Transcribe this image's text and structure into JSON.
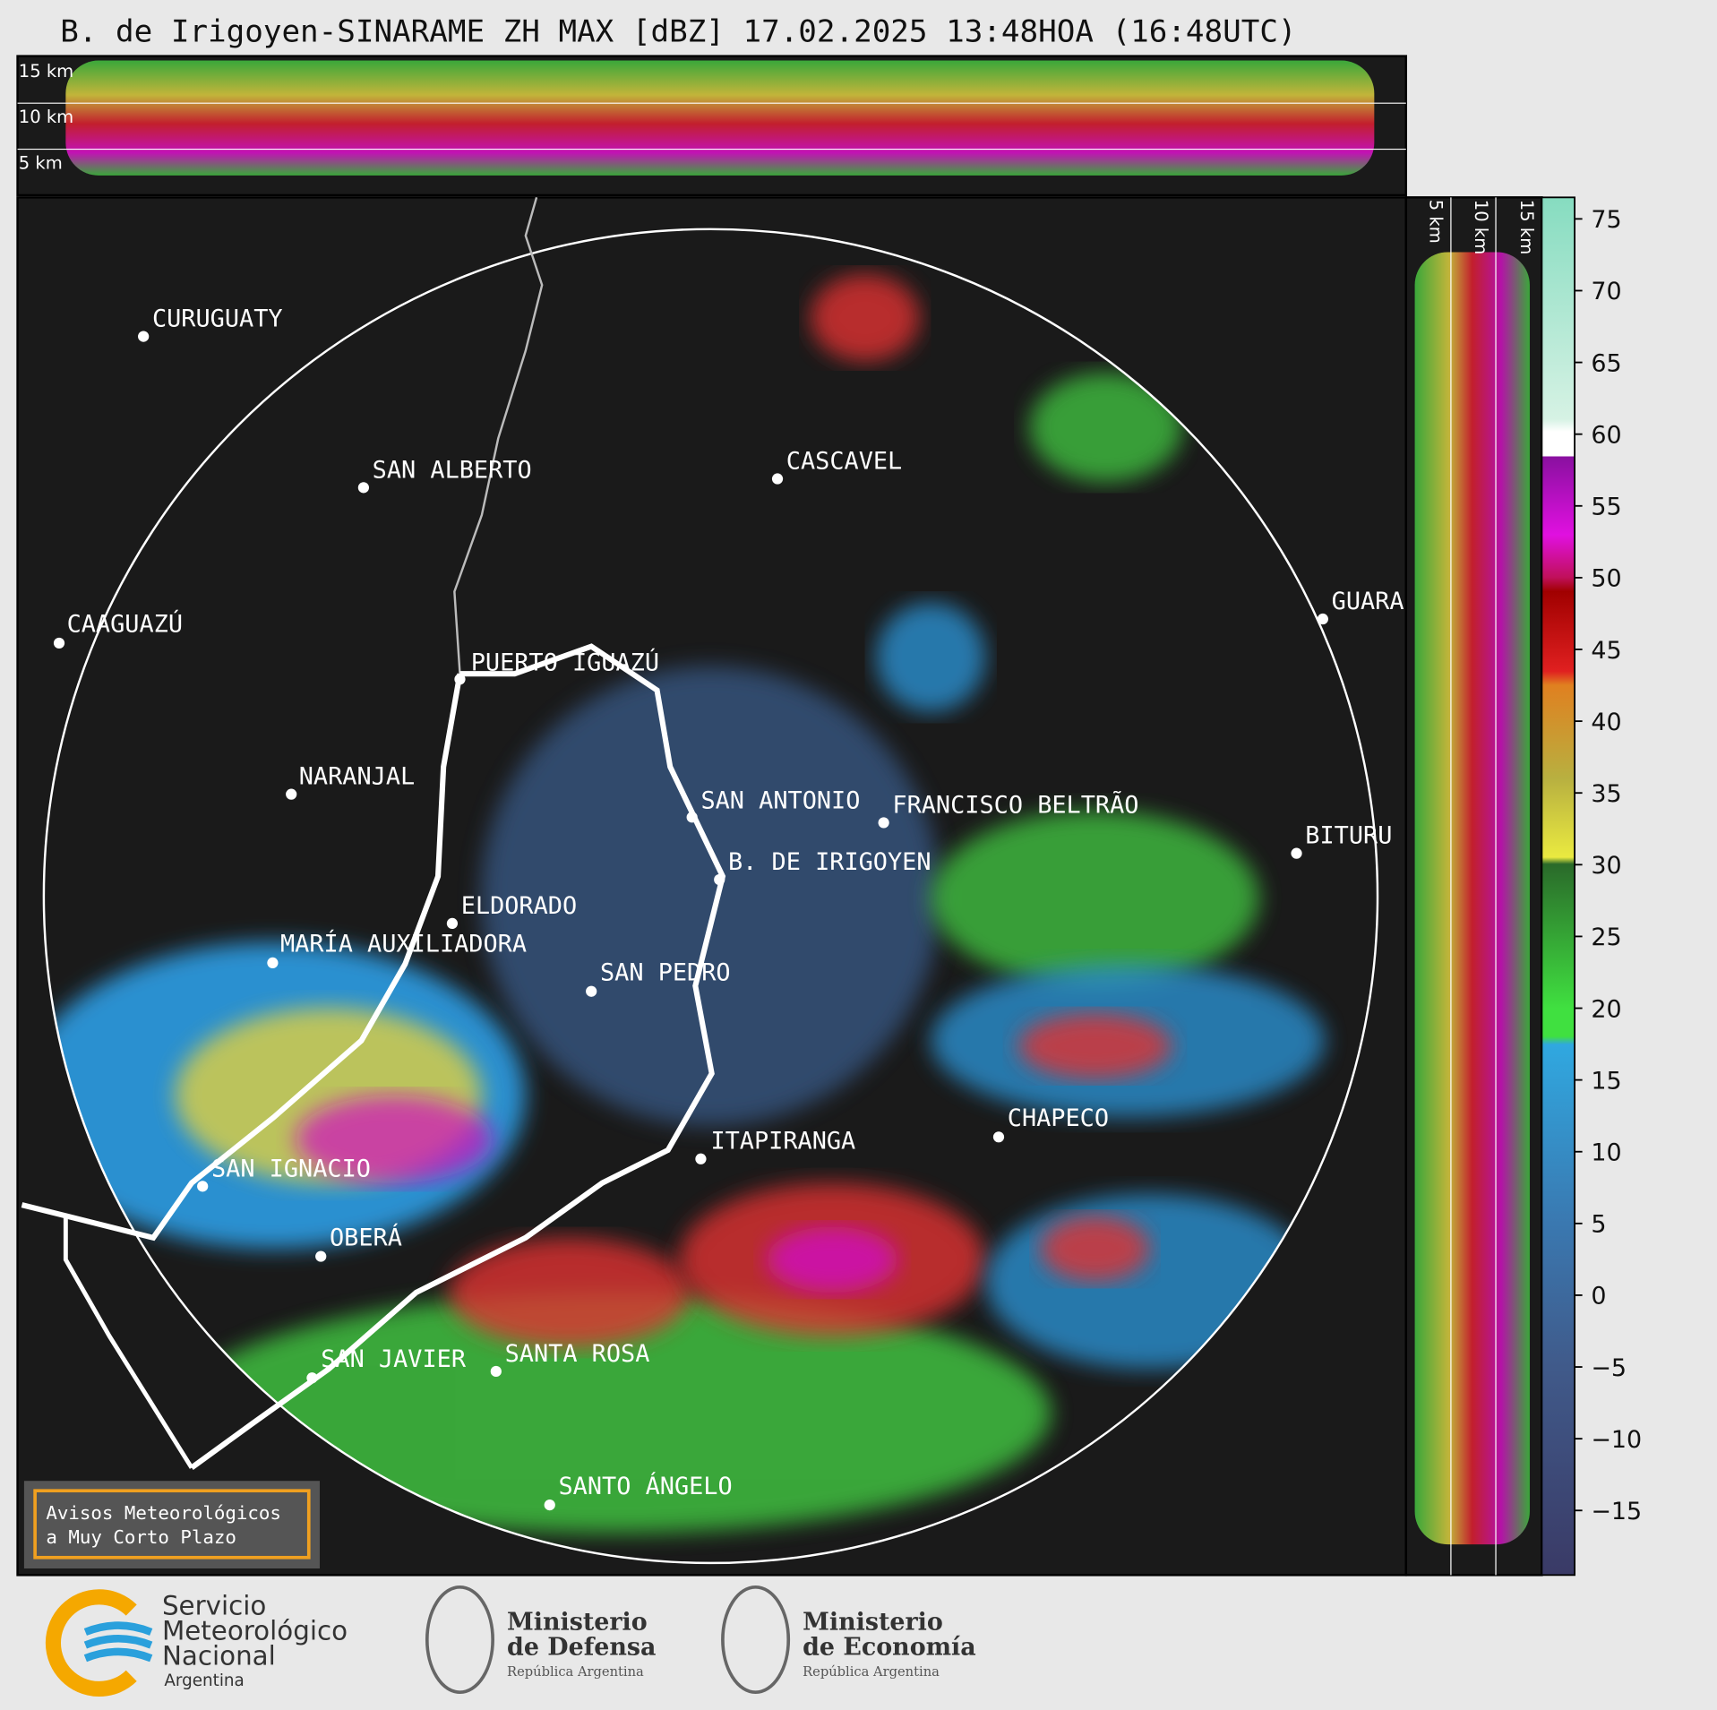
{
  "header": {
    "title": "B. de Irigoyen-SINARAME ZH MAX [dBZ] 17.02.2025 13:48HOA (16:48UTC)"
  },
  "top_panel": {
    "altitude_labels": [
      "15 km",
      "10 km",
      "5 km"
    ]
  },
  "side_panel": {
    "altitude_labels": [
      "5 km",
      "10 km",
      "15 km"
    ]
  },
  "map": {
    "places": [
      "CURUGUATY",
      "SAN ALBERTO",
      "CAAGUAZÚ",
      "CASCAVEL",
      "GUARA",
      "PUERTO IGUAZÚ",
      "NARANJAL",
      "SAN ANTONIO",
      "FRANCISCO BELTRÃO",
      "BITURU",
      "B. DE IRIGOYEN",
      "ELDORADO",
      "MARÍA AUXILIADORA",
      "SAN PEDRO",
      "CHAPECO",
      "ITAPIRANGA",
      "SAN IGNACIO",
      "OBERÁ",
      "SAN JAVIER",
      "SANTA ROSA",
      "SANTO ÁNGELO"
    ]
  },
  "colorbar": {
    "lim": [
      -19.5,
      76.5
    ],
    "ticks": [
      75,
      70,
      65,
      60,
      55,
      50,
      45,
      40,
      35,
      30,
      25,
      20,
      15,
      10,
      5,
      0,
      {
        "value": -5,
        "label": "−5"
      },
      {
        "value": -10,
        "label": "−10"
      },
      {
        "value": -15,
        "label": "−15"
      }
    ]
  },
  "notice": {
    "lines": [
      "Avisos Meteorológicos",
      "a Muy Corto Plazo"
    ]
  },
  "footer": {
    "smn": [
      "Servicio",
      "Meteorológico",
      "Nacional",
      "Argentina"
    ],
    "defensa": [
      "Ministerio",
      "de Defensa",
      "República Argentina"
    ],
    "economia": [
      "Ministerio",
      "de Economía",
      "República Argentina"
    ]
  }
}
